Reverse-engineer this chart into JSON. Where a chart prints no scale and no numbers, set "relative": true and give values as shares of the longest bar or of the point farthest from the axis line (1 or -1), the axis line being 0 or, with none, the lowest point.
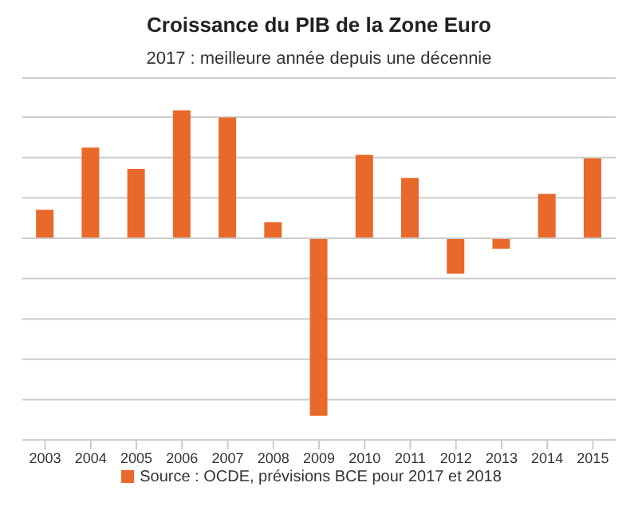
{
  "chart_data": {
    "type": "bar",
    "title": "Croissance du PIB de la Zone Euro",
    "subtitle": "2017 : meilleure année depuis une décennie",
    "categories": [
      "2003",
      "2004",
      "2005",
      "2006",
      "2007",
      "2008",
      "2009",
      "2010",
      "2011",
      "2012",
      "2013",
      "2014",
      "2015"
    ],
    "series": [
      {
        "name": "Source : OCDE, prévisions BCE pour 2017 et 2018",
        "color": "#e8692a",
        "values": [
          0.16,
          0.51,
          0.39,
          0.72,
          0.68,
          0.09,
          -1,
          0.47,
          0.34,
          -0.2,
          -0.06,
          0.25,
          0.45
        ]
      }
    ],
    "relative": true,
    "grid": "y",
    "legend": "bottom"
  }
}
